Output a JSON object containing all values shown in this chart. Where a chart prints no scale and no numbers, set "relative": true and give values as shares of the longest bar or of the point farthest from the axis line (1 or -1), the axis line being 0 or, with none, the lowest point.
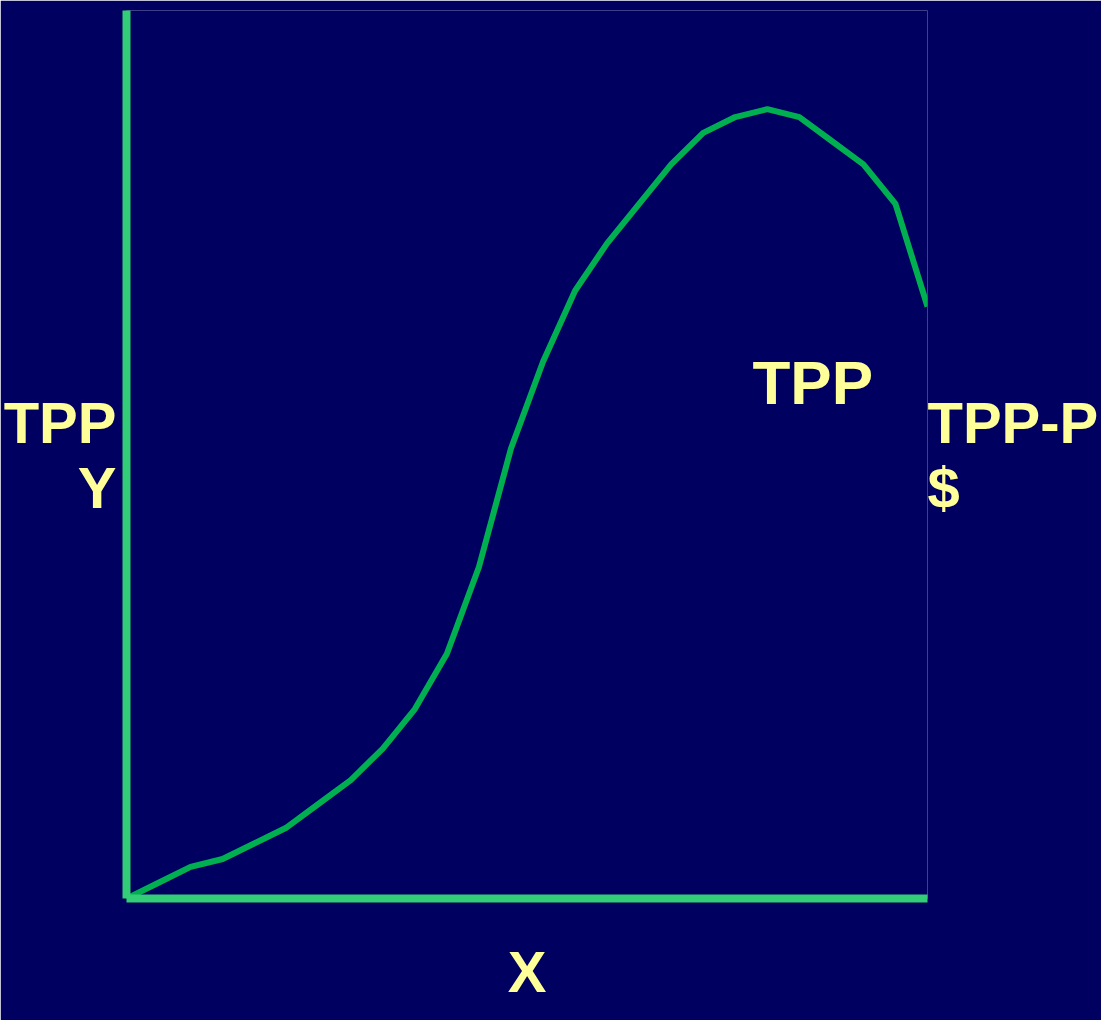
{
  "chart_data": {
    "type": "line",
    "relative": true,
    "xlabel": "X",
    "ylabel": "TPP\nY",
    "y2label": "TPP-P\n$",
    "categories": [
      null,
      null,
      null,
      null,
      null,
      null,
      null,
      null,
      null,
      null,
      null,
      null,
      null,
      null,
      null,
      null,
      null,
      null,
      null,
      null,
      null,
      null,
      null,
      null,
      null,
      null
    ],
    "series": [
      {
        "name": "TPP",
        "color": "#00b050",
        "values": [
          0,
          0.02,
          0.04,
          0.05,
          0.07,
          0.09,
          0.12,
          0.15,
          0.19,
          0.24,
          0.31,
          0.42,
          0.57,
          0.68,
          0.77,
          0.83,
          0.88,
          0.93,
          0.97,
          0.99,
          1.0,
          0.99,
          0.96,
          0.93,
          0.88,
          0.75
        ]
      }
    ]
  }
}
